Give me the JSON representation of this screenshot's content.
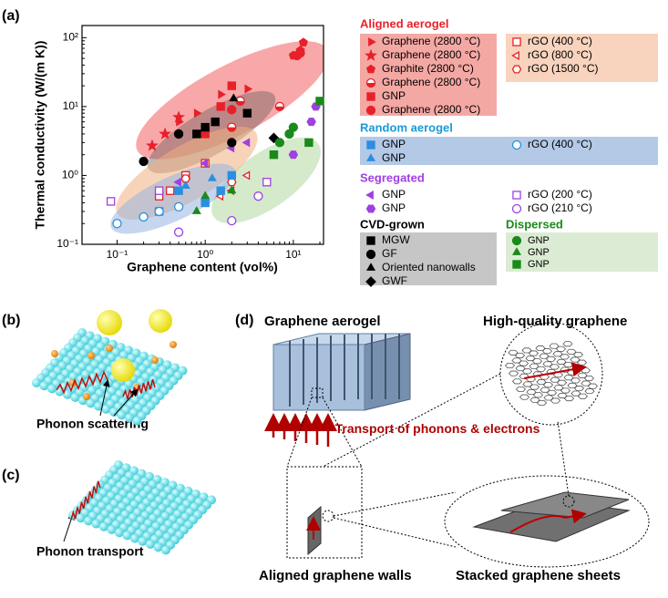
{
  "chart_data": {
    "type": "scatter",
    "panel_label": "(a)",
    "xlabel": "Graphene content (vol%)",
    "ylabel": "Thermal conductivity (W/(m K))",
    "xscale": "log",
    "yscale": "log",
    "xlim": [
      0.04,
      22
    ],
    "ylim": [
      0.1,
      150
    ],
    "xticks": [
      {
        "value": 0.1,
        "label": "10⁻¹"
      },
      {
        "value": 1,
        "label": "10⁰"
      },
      {
        "value": 10,
        "label": "10¹"
      }
    ],
    "yticks": [
      {
        "value": 0.1,
        "label": "10⁻¹"
      },
      {
        "value": 1,
        "label": "10⁰"
      },
      {
        "value": 10,
        "label": "10¹"
      },
      {
        "value": 100,
        "label": "10²"
      }
    ],
    "groups": [
      {
        "title": "Aligned aerogel",
        "color": "#e8202a",
        "box": "#f4a8a4",
        "box2": "#f8d3bd",
        "series": [
          {
            "name": "Graphene (2800 °C)",
            "color": "#e8202a",
            "marker": "triangle-right",
            "filled": true,
            "x": [
              0.5,
              0.8,
              1.5,
              3
            ],
            "values": [
              6,
              8,
              15,
              18
            ]
          },
          {
            "name": "Graphene (2800 °C)",
            "color": "#e8202a",
            "marker": "star",
            "filled": true,
            "x": [
              0.25,
              0.35,
              0.5
            ],
            "values": [
              2.7,
              4,
              7
            ]
          },
          {
            "name": "Graphite (2800 °C)",
            "color": "#e8202a",
            "marker": "pentagon",
            "filled": true,
            "x": [
              10,
              12,
              13
            ],
            "values": [
              55,
              65,
              85
            ]
          },
          {
            "name": "Graphene (2800 °C)",
            "color": "#e8202a",
            "marker": "half-circle",
            "filled": true,
            "x": [
              2,
              2.5,
              7
            ],
            "values": [
              5,
              12,
              10
            ]
          },
          {
            "name": "GNP",
            "color": "#e8202a",
            "marker": "square",
            "filled": true,
            "x": [
              1,
              1.5,
              2
            ],
            "values": [
              4,
              10,
              20
            ]
          },
          {
            "name": "Graphene (2800 °C)",
            "color": "#e8202a",
            "marker": "circle",
            "filled": true,
            "x": [
              2,
              11,
              12
            ],
            "values": [
              9,
              55,
              60
            ]
          },
          {
            "name": "rGO (400 °C)",
            "color": "#e8202a",
            "marker": "square",
            "filled": false,
            "x": [
              0.3,
              0.4,
              0.6,
              1
            ],
            "values": [
              0.5,
              0.6,
              1,
              1.5
            ]
          },
          {
            "name": "rGO (800 °C)",
            "color": "#e8202a",
            "marker": "triangle-left",
            "filled": false,
            "x": [
              1.5,
              2,
              3
            ],
            "values": [
              0.5,
              0.6,
              1
            ]
          },
          {
            "name": "rGO (1500 °C)",
            "color": "#e8202a",
            "marker": "hexagon",
            "filled": false,
            "x": [
              0.6,
              2
            ],
            "values": [
              0.9,
              0.8
            ]
          }
        ]
      },
      {
        "title": "Random aerogel",
        "color": "#1b9ad6",
        "box": "#b4c9e6",
        "series": [
          {
            "name": "GNP",
            "color": "#2a8fe0",
            "marker": "square",
            "filled": true,
            "x": [
              0.3,
              0.5,
              1,
              1.5,
              2
            ],
            "values": [
              0.3,
              0.6,
              0.4,
              0.6,
              1
            ]
          },
          {
            "name": "GNP",
            "color": "#2a8fe0",
            "marker": "triangle-up",
            "filled": true,
            "x": [
              0.6,
              1.2
            ],
            "values": [
              0.7,
              0.9
            ]
          },
          {
            "name": "rGO (400 °C)",
            "color": "#2a8fe0",
            "marker": "circle",
            "filled": false,
            "x": [
              0.1,
              0.2,
              0.3,
              0.5
            ],
            "values": [
              0.2,
              0.25,
              0.3,
              0.35
            ]
          }
        ]
      },
      {
        "title": "Segregated",
        "color": "#a040e0",
        "series": [
          {
            "name": "GNP",
            "color": "#a040e0",
            "marker": "triangle-left",
            "filled": true,
            "x": [
              0.5,
              1,
              2,
              3
            ],
            "values": [
              0.8,
              1.5,
              2.5,
              3
            ]
          },
          {
            "name": "GNP",
            "color": "#a040e0",
            "marker": "hexagon",
            "filled": true,
            "x": [
              18,
              16,
              10
            ],
            "values": [
              10,
              6,
              2
            ]
          },
          {
            "name": "rGO (200 °C)",
            "color": "#a040e0",
            "marker": "square",
            "filled": false,
            "x": [
              0.085,
              0.3,
              5
            ],
            "values": [
              0.42,
              0.6,
              0.8
            ]
          },
          {
            "name": "rGO (210 °C)",
            "color": "#a040e0",
            "marker": "circle",
            "filled": false,
            "x": [
              0.5,
              2,
              4
            ],
            "values": [
              0.15,
              0.22,
              0.5
            ]
          }
        ]
      },
      {
        "title": "CVD-grown",
        "color": "#000000",
        "box": "#c6c6c6",
        "series": [
          {
            "name": "MGW",
            "color": "#000000",
            "marker": "square",
            "filled": true,
            "x": [
              0.8,
              1,
              1.3,
              3
            ],
            "values": [
              4,
              5,
              6,
              8
            ]
          },
          {
            "name": "GF",
            "color": "#000000",
            "marker": "circle",
            "filled": true,
            "x": [
              0.2,
              0.5,
              2
            ],
            "values": [
              1.6,
              4,
              3
            ]
          },
          {
            "name": "Oriented nanowalls",
            "color": "#000000",
            "marker": "triangle-up",
            "filled": true,
            "x": [
              2.1
            ],
            "values": [
              13
            ]
          },
          {
            "name": "GWF",
            "color": "#000000",
            "marker": "diamond",
            "filled": true,
            "x": [
              6
            ],
            "values": [
              3.5
            ]
          }
        ]
      },
      {
        "title": "Dispersed",
        "color": "#1a8a1a",
        "box": "#dcecd4",
        "series": [
          {
            "name": "GNP",
            "color": "#1a8a1a",
            "marker": "circle",
            "filled": true,
            "x": [
              7,
              9,
              10
            ],
            "values": [
              3,
              4,
              5
            ]
          },
          {
            "name": "GNP",
            "color": "#1a8a1a",
            "marker": "triangle-up",
            "filled": true,
            "x": [
              0.8,
              1,
              2
            ],
            "values": [
              0.3,
              0.5,
              0.6
            ]
          },
          {
            "name": "GNP",
            "color": "#1a8a1a",
            "marker": "square",
            "filled": true,
            "x": [
              6,
              15,
              20
            ],
            "values": [
              2,
              3,
              12
            ]
          }
        ]
      }
    ]
  },
  "panels": {
    "b": {
      "label": "(b)",
      "caption": "Phonon scattering"
    },
    "c": {
      "label": "(c)",
      "caption": "Phonon transport"
    },
    "d": {
      "label": "(d)",
      "aerogel": "Graphene aerogel",
      "quality": "High-quality graphene",
      "transport": "Transport of phonons & electrons",
      "walls": "Aligned graphene walls",
      "sheets": "Stacked graphene sheets"
    }
  }
}
